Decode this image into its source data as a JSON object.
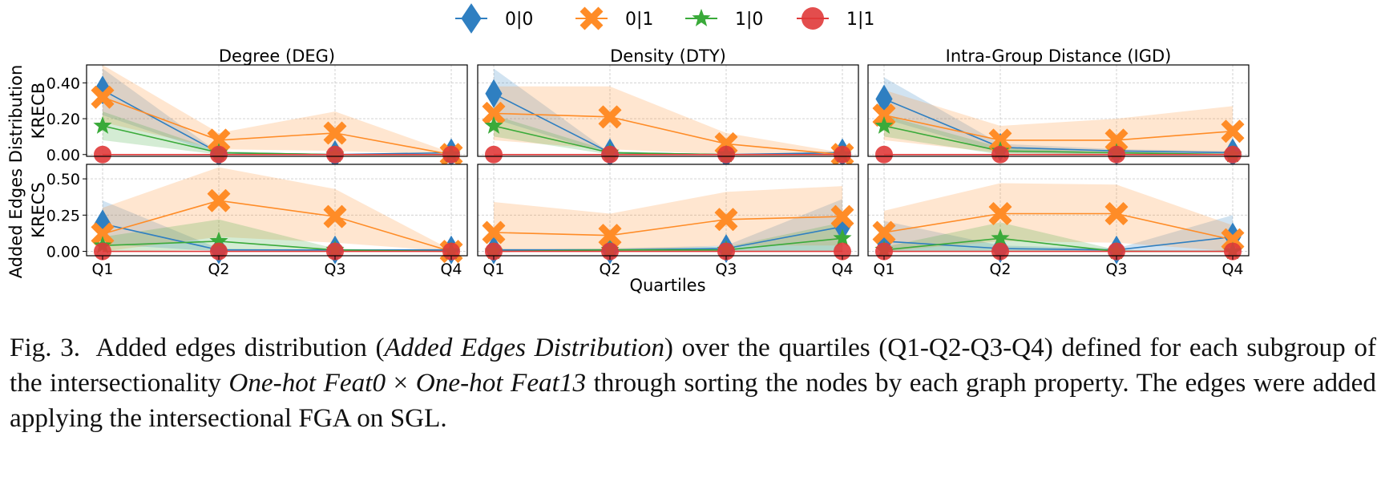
{
  "legend": [
    {
      "label": "0|0",
      "color": "#2f7fc1",
      "marker": "diamond"
    },
    {
      "label": "0|1",
      "color": "#ff8c27",
      "marker": "x"
    },
    {
      "label": "1|0",
      "color": "#3aaa3a",
      "marker": "star"
    },
    {
      "label": "1|1",
      "color": "#e03a3a",
      "marker": "circle"
    }
  ],
  "chart_data": {
    "type": "line",
    "xlabel": "Quartiles",
    "ylabel_lines": [
      "Added Edges Distribution"
    ],
    "categories": [
      "Q1",
      "Q2",
      "Q3",
      "Q4"
    ],
    "columns": [
      "Degree (DEG)",
      "Density (DTY)",
      "Intra-Group Distance (IGD)"
    ],
    "rows": [
      {
        "label": "KRECB",
        "ylim": [
          -0.01,
          0.5
        ],
        "yticks": [
          0.0,
          0.2,
          0.4
        ],
        "ytick_labels": [
          "0.00",
          "0.20",
          "0.40"
        ]
      },
      {
        "label": "KRECS",
        "ylim": [
          -0.03,
          0.6
        ],
        "yticks": [
          0.0,
          0.25,
          0.5
        ],
        "ytick_labels": [
          "0.00",
          "0.25",
          "0.50"
        ]
      }
    ],
    "panels": [
      {
        "row": 0,
        "col": 0,
        "series": {
          "0|0": {
            "values": [
              0.36,
              0.01,
              0.0,
              0.01
            ],
            "lo": [
              0.22,
              0.0,
              0.0,
              0.0
            ],
            "hi": [
              0.48,
              0.01,
              0.0,
              0.01
            ]
          },
          "0|1": {
            "values": [
              0.32,
              0.08,
              0.12,
              0.0
            ],
            "lo": [
              0.18,
              0.03,
              0.02,
              0.0
            ],
            "hi": [
              0.5,
              0.12,
              0.24,
              0.01
            ]
          },
          "1|0": {
            "values": [
              0.16,
              0.01,
              0.0,
              0.0
            ],
            "lo": [
              0.08,
              0.0,
              0.0,
              0.0
            ],
            "hi": [
              0.24,
              0.02,
              0.0,
              0.0
            ]
          },
          "1|1": {
            "values": [
              0.0,
              0.0,
              0.0,
              0.0
            ],
            "lo": [
              0.0,
              0.0,
              0.0,
              0.0
            ],
            "hi": [
              0.0,
              0.0,
              0.0,
              0.0
            ]
          }
        }
      },
      {
        "row": 0,
        "col": 1,
        "series": {
          "0|0": {
            "values": [
              0.34,
              0.01,
              0.0,
              0.01
            ],
            "lo": [
              0.2,
              0.0,
              0.0,
              0.0
            ],
            "hi": [
              0.48,
              0.01,
              0.0,
              0.02
            ]
          },
          "0|1": {
            "values": [
              0.23,
              0.21,
              0.06,
              0.0
            ],
            "lo": [
              0.08,
              0.03,
              0.0,
              0.0
            ],
            "hi": [
              0.38,
              0.38,
              0.12,
              0.01
            ]
          },
          "1|0": {
            "values": [
              0.16,
              0.01,
              0.0,
              0.0
            ],
            "lo": [
              0.1,
              0.0,
              0.0,
              0.0
            ],
            "hi": [
              0.22,
              0.02,
              0.0,
              0.0
            ]
          },
          "1|1": {
            "values": [
              0.0,
              0.0,
              0.0,
              0.0
            ],
            "lo": [
              0.0,
              0.0,
              0.0,
              0.0
            ],
            "hi": [
              0.0,
              0.0,
              0.0,
              0.0
            ]
          }
        }
      },
      {
        "row": 0,
        "col": 2,
        "series": {
          "0|0": {
            "values": [
              0.31,
              0.04,
              0.02,
              0.01
            ],
            "lo": [
              0.2,
              0.01,
              0.0,
              0.0
            ],
            "hi": [
              0.43,
              0.06,
              0.03,
              0.02
            ]
          },
          "0|1": {
            "values": [
              0.22,
              0.08,
              0.08,
              0.13
            ],
            "lo": [
              0.08,
              0.01,
              0.0,
              0.0
            ],
            "hi": [
              0.36,
              0.16,
              0.2,
              0.27
            ]
          },
          "1|0": {
            "values": [
              0.16,
              0.02,
              0.01,
              0.0
            ],
            "lo": [
              0.1,
              0.0,
              0.0,
              0.0
            ],
            "hi": [
              0.22,
              0.04,
              0.01,
              0.0
            ]
          },
          "1|1": {
            "values": [
              0.0,
              0.0,
              0.0,
              0.0
            ],
            "lo": [
              0.0,
              0.0,
              0.0,
              0.0
            ],
            "hi": [
              0.0,
              0.0,
              0.0,
              0.0
            ]
          }
        }
      },
      {
        "row": 1,
        "col": 0,
        "series": {
          "0|0": {
            "values": [
              0.19,
              0.01,
              0.01,
              0.01
            ],
            "lo": [
              0.05,
              0.0,
              0.0,
              0.0
            ],
            "hi": [
              0.35,
              0.02,
              0.01,
              0.02
            ]
          },
          "0|1": {
            "values": [
              0.12,
              0.35,
              0.24,
              0.0
            ],
            "lo": [
              0.0,
              0.1,
              0.06,
              0.0
            ],
            "hi": [
              0.3,
              0.58,
              0.43,
              0.01
            ]
          },
          "1|0": {
            "values": [
              0.04,
              0.07,
              0.01,
              0.0
            ],
            "lo": [
              0.0,
              0.01,
              0.0,
              0.0
            ],
            "hi": [
              0.1,
              0.22,
              0.02,
              0.0
            ]
          },
          "1|1": {
            "values": [
              0.0,
              0.0,
              0.0,
              0.0
            ],
            "lo": [
              0.0,
              0.0,
              0.0,
              0.0
            ],
            "hi": [
              0.0,
              0.0,
              0.0,
              0.0
            ]
          }
        }
      },
      {
        "row": 1,
        "col": 1,
        "series": {
          "0|0": {
            "values": [
              0.01,
              0.01,
              0.02,
              0.17
            ],
            "lo": [
              0.0,
              0.0,
              0.0,
              0.0
            ],
            "hi": [
              0.02,
              0.02,
              0.04,
              0.36
            ]
          },
          "0|1": {
            "values": [
              0.13,
              0.11,
              0.22,
              0.24
            ],
            "lo": [
              0.0,
              0.0,
              0.04,
              0.04
            ],
            "hi": [
              0.34,
              0.26,
              0.41,
              0.45
            ]
          },
          "1|0": {
            "values": [
              0.0,
              0.01,
              0.01,
              0.09
            ],
            "lo": [
              0.0,
              0.0,
              0.0,
              0.0
            ],
            "hi": [
              0.01,
              0.02,
              0.03,
              0.2
            ]
          },
          "1|1": {
            "values": [
              0.0,
              0.0,
              0.0,
              0.0
            ],
            "lo": [
              0.0,
              0.0,
              0.0,
              0.0
            ],
            "hi": [
              0.0,
              0.0,
              0.0,
              0.0
            ]
          }
        }
      },
      {
        "row": 1,
        "col": 2,
        "series": {
          "0|0": {
            "values": [
              0.07,
              0.02,
              0.01,
              0.1
            ],
            "lo": [
              0.0,
              0.0,
              0.0,
              0.0
            ],
            "hi": [
              0.21,
              0.04,
              0.02,
              0.25
            ]
          },
          "0|1": {
            "values": [
              0.13,
              0.26,
              0.26,
              0.08
            ],
            "lo": [
              0.0,
              0.07,
              0.06,
              0.0
            ],
            "hi": [
              0.28,
              0.47,
              0.46,
              0.18
            ]
          },
          "1|0": {
            "values": [
              0.01,
              0.09,
              0.0,
              0.0
            ],
            "lo": [
              0.0,
              0.0,
              0.0,
              0.0
            ],
            "hi": [
              0.03,
              0.2,
              0.01,
              0.0
            ]
          },
          "1|1": {
            "values": [
              0.0,
              0.0,
              0.0,
              0.0
            ],
            "lo": [
              0.0,
              0.0,
              0.0,
              0.0
            ],
            "hi": [
              0.0,
              0.0,
              0.0,
              0.0
            ]
          }
        }
      }
    ]
  },
  "caption": {
    "fig_label": "Fig. 3.",
    "part1": "Added edges distribution (",
    "italic1": "Added Edges Distribution",
    "part2": ") over the quartiles (Q1-Q2-Q3-Q4) defined for each subgroup of the intersectionality ",
    "italic2": "One-hot Feat0",
    "part3": " × ",
    "italic3": "One-hot Feat13",
    "part4": " through sorting the nodes by each graph property. The edges were added applying the intersectional FGA on SGL."
  }
}
